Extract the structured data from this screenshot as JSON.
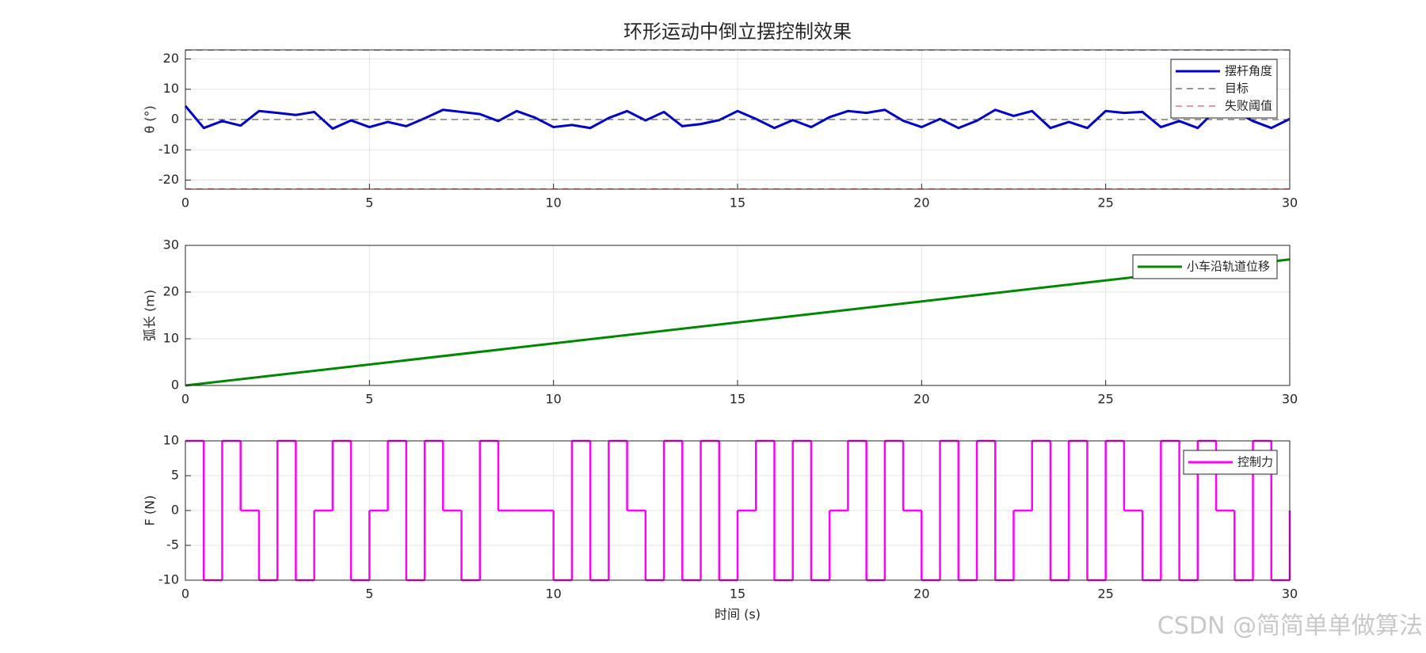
{
  "chart_data": [
    {
      "type": "line",
      "title": "环形运动中倒立摆控制效果",
      "ylabel": "θ (°)",
      "xlim": [
        0,
        30
      ],
      "xticks": [
        0,
        5,
        10,
        15,
        20,
        25,
        30
      ],
      "ylim": [
        -23,
        23
      ],
      "yticks": [
        -20,
        -10,
        0,
        10,
        20
      ],
      "grid": true,
      "legend": "upper right",
      "x": [
        0,
        0.5,
        1,
        1.5,
        2,
        2.5,
        3,
        3.5,
        4,
        4.5,
        5,
        5.5,
        6,
        6.5,
        7,
        7.5,
        8,
        8.5,
        9,
        9.5,
        10,
        10.5,
        11,
        11.5,
        12,
        12.5,
        13,
        13.5,
        14,
        14.5,
        15,
        15.5,
        16,
        16.5,
        17,
        17.5,
        18,
        18.5,
        19,
        19.5,
        20,
        20.5,
        21,
        21.5,
        22,
        22.5,
        23,
        23.5,
        24,
        24.5,
        25,
        25.5,
        26,
        26.5,
        27,
        27.5,
        28,
        28.5,
        29,
        29.5,
        30
      ],
      "series": [
        {
          "name": "摆杆角度",
          "color": "#0000cc",
          "style": "solid",
          "values": [
            4.5,
            -2.8,
            -0.5,
            -2,
            2.8,
            2.2,
            1.5,
            2.5,
            -3,
            -0.3,
            -2.5,
            -0.8,
            -2.2,
            0.4,
            3.2,
            2.5,
            1.8,
            -0.5,
            2.8,
            0.6,
            -2.5,
            -1.8,
            -2.8,
            0.5,
            2.8,
            -0.3,
            2.5,
            -2.2,
            -1.5,
            -0.2,
            2.8,
            0.2,
            -2.8,
            -0.2,
            -2.5,
            0.8,
            2.8,
            2.2,
            3.2,
            -0.4,
            -2.5,
            0.2,
            -2.8,
            -0.4,
            3.2,
            1.2,
            2.8,
            -2.8,
            -0.8,
            -2.8,
            2.8,
            2.2,
            2.5,
            -2.5,
            -0.5,
            -2.8,
            3.2,
            2.8,
            -0.5,
            -2.8,
            0.2
          ]
        },
        {
          "name": "目标",
          "color": "#333333",
          "style": "dashed",
          "levels": [
            0
          ]
        },
        {
          "name": "失败阈值",
          "color": "#e03030",
          "style": "dashed",
          "levels": [
            22.9,
            -22.9
          ]
        }
      ]
    },
    {
      "type": "line",
      "ylabel": "弧长 (m)",
      "xlim": [
        0,
        30
      ],
      "xticks": [
        0,
        5,
        10,
        15,
        20,
        25,
        30
      ],
      "ylim": [
        0,
        30
      ],
      "yticks": [
        0,
        10,
        20,
        30
      ],
      "grid": true,
      "legend": "upper right",
      "x": [
        0,
        30
      ],
      "series": [
        {
          "name": "小车沿轨道位移",
          "color": "#008800",
          "style": "solid",
          "values": [
            0,
            27
          ]
        }
      ]
    },
    {
      "type": "step",
      "ylabel": "F (N)",
      "xlabel": "时间 (s)",
      "xlim": [
        0,
        30
      ],
      "xticks": [
        0,
        5,
        10,
        15,
        20,
        25,
        30
      ],
      "ylim": [
        -10,
        10
      ],
      "yticks": [
        -10,
        -5,
        0,
        5,
        10
      ],
      "grid": true,
      "legend": "upper right",
      "x": [
        0,
        0.5,
        1,
        1.5,
        2,
        2.5,
        3,
        3.5,
        4,
        4.5,
        5,
        5.5,
        6,
        6.5,
        7,
        7.5,
        8,
        8.5,
        9,
        9.5,
        10,
        10.5,
        11,
        11.5,
        12,
        12.5,
        13,
        13.5,
        14,
        14.5,
        15,
        15.5,
        16,
        16.5,
        17,
        17.5,
        18,
        18.5,
        19,
        19.5,
        20,
        20.5,
        21,
        21.5,
        22,
        22.5,
        23,
        23.5,
        24,
        24.5,
        25,
        25.5,
        26,
        26.5,
        27,
        27.5,
        28,
        28.5,
        29,
        29.5,
        30
      ],
      "series": [
        {
          "name": "控制力",
          "color": "#ff00ff",
          "style": "solid",
          "values": [
            10,
            -10,
            10,
            0,
            -10,
            10,
            -10,
            0,
            10,
            -10,
            0,
            10,
            -10,
            10,
            0,
            -10,
            10,
            0,
            0,
            0,
            -10,
            10,
            -10,
            10,
            0,
            -10,
            10,
            -10,
            10,
            -10,
            0,
            10,
            -10,
            10,
            -10,
            0,
            10,
            -10,
            10,
            0,
            -10,
            10,
            -10,
            10,
            -10,
            0,
            10,
            -10,
            10,
            -10,
            10,
            0,
            -10,
            10,
            -10,
            10,
            0,
            -10,
            10,
            -10,
            0
          ]
        }
      ]
    }
  ],
  "watermark": "CSDN @简简单单做算法"
}
